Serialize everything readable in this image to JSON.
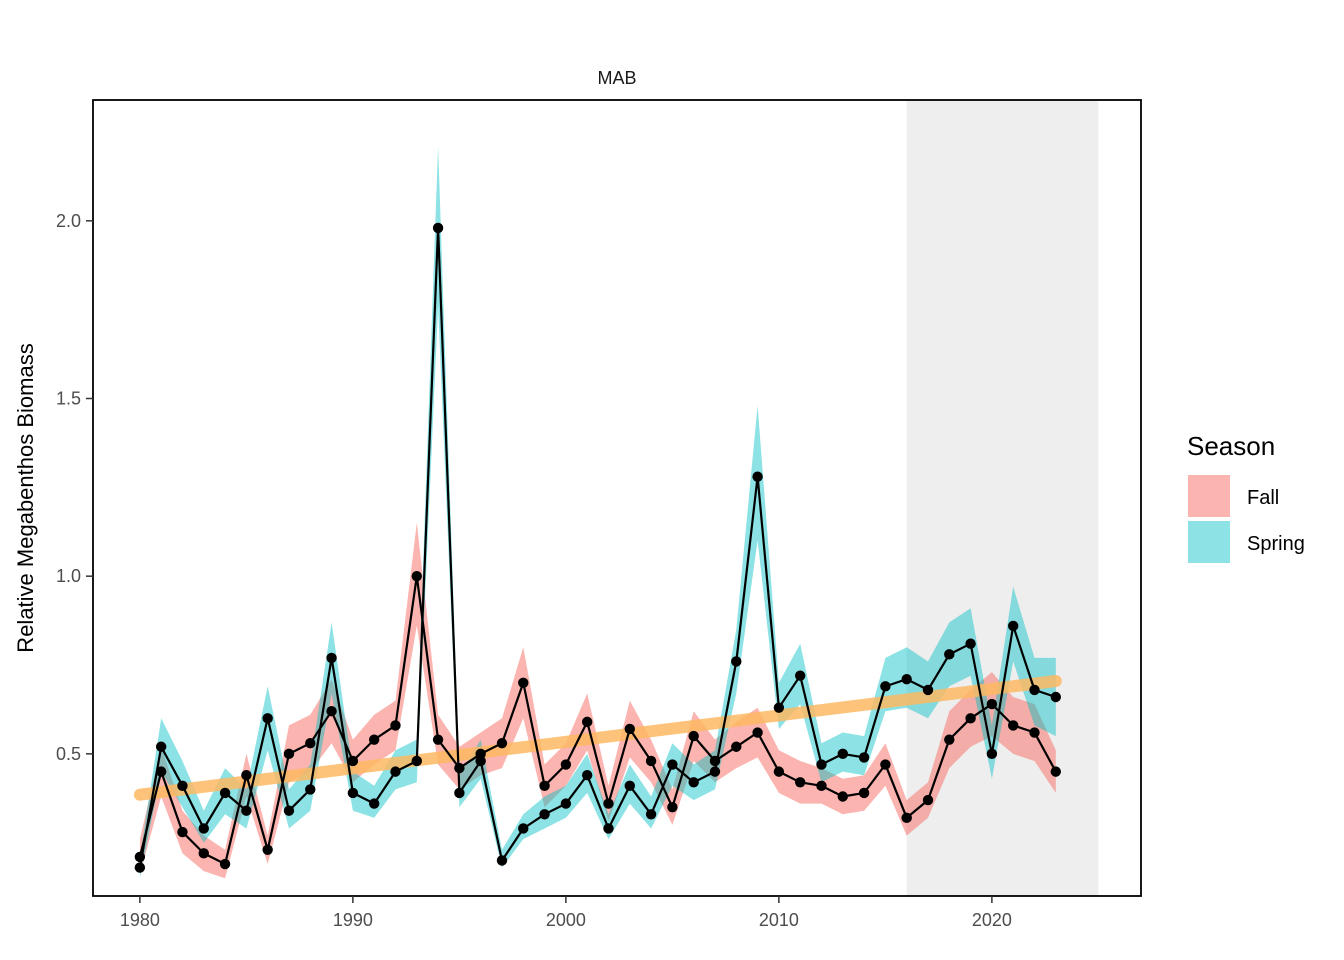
{
  "chart_data": {
    "type": "line",
    "title": "MAB",
    "xlabel": "",
    "ylabel": "Relative Megabenthos Biomass",
    "xlim": [
      1977.8,
      2027.0
    ],
    "ylim": [
      0.1,
      2.34
    ],
    "xticks": [
      1980,
      1990,
      2000,
      2010,
      2020
    ],
    "yticks": [
      0.5,
      1.0,
      1.5,
      2.0
    ],
    "xtick_labels": [
      "1980",
      "1990",
      "2000",
      "2010",
      "2020"
    ],
    "ytick_labels": [
      "0.5",
      "1.0",
      "1.5",
      "2.0"
    ],
    "grid": false,
    "shaded_period": [
      2016,
      2025
    ],
    "legend": {
      "title": "Season",
      "position": "right"
    },
    "series": [
      {
        "name": "Fall",
        "color": "#F8766D",
        "x": [
          1980,
          1981,
          1982,
          1983,
          1984,
          1985,
          1986,
          1987,
          1988,
          1989,
          1990,
          1991,
          1992,
          1993,
          1994,
          1995,
          1996,
          1997,
          1998,
          1999,
          2000,
          2001,
          2002,
          2003,
          2004,
          2005,
          2006,
          2007,
          2008,
          2009,
          2010,
          2011,
          2012,
          2013,
          2014,
          2015,
          2016,
          2017,
          2018,
          2019,
          2020,
          2021,
          2022,
          2023
        ],
        "y": [
          0.21,
          0.45,
          0.28,
          0.22,
          0.19,
          0.44,
          0.23,
          0.5,
          0.53,
          0.62,
          0.48,
          0.54,
          0.58,
          1.0,
          0.54,
          0.46,
          0.5,
          0.53,
          0.7,
          0.41,
          0.47,
          0.59,
          0.36,
          0.57,
          0.48,
          0.35,
          0.55,
          0.48,
          0.52,
          0.56,
          0.45,
          0.42,
          0.41,
          0.38,
          0.39,
          0.47,
          0.32,
          0.37,
          0.54,
          0.6,
          0.64,
          0.58,
          0.56,
          0.45
        ],
        "lower": [
          0.16,
          0.38,
          0.22,
          0.17,
          0.15,
          0.38,
          0.19,
          0.42,
          0.45,
          0.53,
          0.42,
          0.47,
          0.51,
          0.86,
          0.47,
          0.4,
          0.44,
          0.46,
          0.6,
          0.35,
          0.41,
          0.51,
          0.31,
          0.49,
          0.42,
          0.3,
          0.48,
          0.42,
          0.46,
          0.49,
          0.39,
          0.36,
          0.36,
          0.33,
          0.34,
          0.41,
          0.27,
          0.32,
          0.46,
          0.52,
          0.55,
          0.5,
          0.48,
          0.39
        ],
        "upper": [
          0.26,
          0.52,
          0.34,
          0.27,
          0.23,
          0.5,
          0.27,
          0.58,
          0.61,
          0.71,
          0.54,
          0.61,
          0.65,
          1.15,
          0.61,
          0.52,
          0.56,
          0.6,
          0.8,
          0.47,
          0.53,
          0.67,
          0.41,
          0.65,
          0.54,
          0.4,
          0.62,
          0.54,
          0.59,
          0.63,
          0.51,
          0.48,
          0.46,
          0.43,
          0.44,
          0.53,
          0.37,
          0.42,
          0.62,
          0.68,
          0.73,
          0.66,
          0.64,
          0.51
        ]
      },
      {
        "name": "Spring",
        "color": "#00BFC4",
        "x": [
          1980,
          1981,
          1982,
          1983,
          1984,
          1985,
          1986,
          1987,
          1988,
          1989,
          1990,
          1991,
          1992,
          1993,
          1994,
          1995,
          1996,
          1997,
          1998,
          1999,
          2000,
          2001,
          2002,
          2003,
          2004,
          2005,
          2006,
          2007,
          2008,
          2009,
          2010,
          2011,
          2012,
          2013,
          2014,
          2015,
          2016,
          2017,
          2018,
          2019,
          2020,
          2021,
          2022,
          2023
        ],
        "y": [
          0.18,
          0.52,
          0.41,
          0.29,
          0.39,
          0.34,
          0.6,
          0.34,
          0.4,
          0.77,
          0.39,
          0.36,
          0.45,
          0.48,
          1.98,
          0.39,
          0.48,
          0.2,
          0.29,
          0.33,
          0.36,
          0.44,
          0.29,
          0.41,
          0.33,
          0.47,
          0.42,
          0.45,
          0.76,
          1.28,
          0.63,
          0.72,
          0.47,
          0.5,
          0.49,
          0.69,
          0.71,
          0.68,
          0.78,
          0.81,
          0.5,
          0.86,
          0.68,
          0.66
        ],
        "lower": [
          0.15,
          0.45,
          0.35,
          0.25,
          0.33,
          0.29,
          0.51,
          0.29,
          0.34,
          0.67,
          0.34,
          0.32,
          0.4,
          0.42,
          1.76,
          0.35,
          0.43,
          0.18,
          0.26,
          0.29,
          0.32,
          0.39,
          0.26,
          0.36,
          0.29,
          0.41,
          0.37,
          0.4,
          0.67,
          1.1,
          0.57,
          0.64,
          0.42,
          0.45,
          0.44,
          0.62,
          0.63,
          0.6,
          0.69,
          0.72,
          0.43,
          0.76,
          0.58,
          0.55
        ],
        "upper": [
          0.21,
          0.6,
          0.48,
          0.34,
          0.46,
          0.4,
          0.69,
          0.4,
          0.47,
          0.87,
          0.45,
          0.41,
          0.51,
          0.54,
          2.21,
          0.44,
          0.54,
          0.23,
          0.33,
          0.38,
          0.41,
          0.5,
          0.33,
          0.47,
          0.38,
          0.53,
          0.47,
          0.51,
          0.85,
          1.48,
          0.7,
          0.81,
          0.53,
          0.56,
          0.55,
          0.77,
          0.8,
          0.76,
          0.87,
          0.91,
          0.58,
          0.97,
          0.77,
          0.77
        ]
      }
    ],
    "trend": {
      "color": "#FDB863",
      "x": [
        1980,
        2023
      ],
      "y": [
        0.385,
        0.705
      ]
    }
  }
}
